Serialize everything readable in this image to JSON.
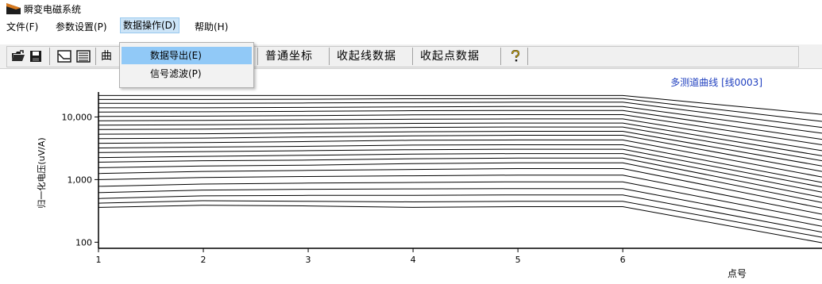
{
  "window": {
    "title": "瞬变电磁系统"
  },
  "menubar": {
    "file": "文件(F)",
    "params": "参数设置(P)",
    "data_ops": "数据操作(D)",
    "help": "帮助(H)"
  },
  "dropdown": {
    "export": "数据导出(E)",
    "filter": "信号滤波(P)"
  },
  "toolbar": {
    "curve_partial": "曲",
    "normal_axis": "普通坐标",
    "collect_line": "收起线数据",
    "collect_point": "收起点数据"
  },
  "chart_data": {
    "type": "line",
    "title": "多测道曲线 [线0003]",
    "xlabel": "点号",
    "ylabel": "归一化电压(uV/A)",
    "yscale": "log",
    "ylim": [
      80,
      25000
    ],
    "xlim": [
      1,
      7.9
    ],
    "xticks": [
      1,
      2,
      3,
      4,
      5,
      6
    ],
    "xtick_labels": [
      "1",
      "2",
      "3",
      "4",
      "5",
      "6"
    ],
    "yticks": [
      100,
      1000,
      10000
    ],
    "ytick_labels": [
      "100",
      "1,000",
      "10,000"
    ],
    "x": [
      1,
      2,
      3,
      4,
      5,
      6,
      7.9
    ],
    "series": [
      {
        "values": [
          22000,
          22000,
          22000,
          22000,
          22000,
          22000,
          11000
        ]
      },
      {
        "values": [
          19000,
          19000,
          19200,
          19500,
          19600,
          19600,
          8500
        ]
      },
      {
        "values": [
          16500,
          16500,
          16700,
          17000,
          17200,
          17200,
          6800
        ]
      },
      {
        "values": [
          14000,
          14000,
          14200,
          14500,
          14700,
          14700,
          5500
        ]
      },
      {
        "values": [
          12000,
          12100,
          12300,
          12600,
          12700,
          12700,
          4400
        ]
      },
      {
        "values": [
          10200,
          10300,
          10500,
          10800,
          10900,
          10900,
          3600
        ]
      },
      {
        "values": [
          8700,
          8800,
          9000,
          9200,
          9300,
          9300,
          2900
        ]
      },
      {
        "values": [
          7400,
          7500,
          7700,
          7900,
          8000,
          8000,
          2400
        ]
      },
      {
        "values": [
          6300,
          6400,
          6600,
          6800,
          6900,
          6900,
          2000
        ]
      },
      {
        "values": [
          5300,
          5400,
          5600,
          5800,
          5900,
          5900,
          1650
        ]
      },
      {
        "values": [
          4500,
          4600,
          4800,
          5000,
          5100,
          5100,
          1350
        ]
      },
      {
        "values": [
          3800,
          3900,
          4050,
          4250,
          4300,
          4300,
          1100
        ]
      },
      {
        "values": [
          3200,
          3300,
          3400,
          3550,
          3600,
          3600,
          900
        ]
      },
      {
        "values": [
          2700,
          2800,
          2900,
          3000,
          3050,
          3050,
          760
        ]
      },
      {
        "values": [
          2250,
          2350,
          2450,
          2550,
          2600,
          2600,
          630
        ]
      },
      {
        "values": [
          1900,
          2000,
          2050,
          2150,
          2200,
          2200,
          520
        ]
      },
      {
        "values": [
          1550,
          1650,
          1700,
          1800,
          1850,
          1850,
          430
        ]
      },
      {
        "values": [
          1250,
          1350,
          1400,
          1450,
          1500,
          1500,
          350
        ]
      },
      {
        "values": [
          1000,
          1080,
          1120,
          1150,
          1180,
          1180,
          280
        ]
      },
      {
        "values": [
          780,
          850,
          880,
          900,
          920,
          920,
          225
        ]
      },
      {
        "values": [
          620,
          680,
          700,
          710,
          720,
          720,
          180
        ]
      },
      {
        "values": [
          500,
          550,
          560,
          560,
          570,
          570,
          145
        ]
      },
      {
        "values": [
          420,
          460,
          450,
          440,
          450,
          450,
          120
        ]
      },
      {
        "values": [
          360,
          390,
          380,
          360,
          370,
          370,
          98
        ]
      }
    ]
  }
}
